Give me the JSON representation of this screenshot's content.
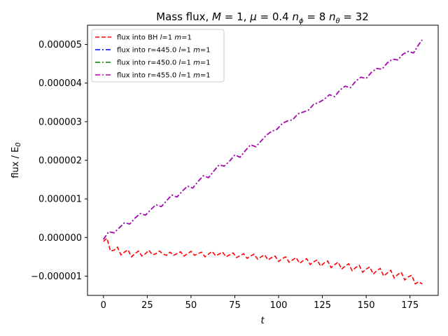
{
  "chart_data": {
    "type": "line",
    "title": "Mass flux, M = 1, μ = 0.4 nϕ = 8 nθ = 32",
    "title_parts": {
      "prefix": "Mass flux, ",
      "m": "M",
      "m_val": " = 1, ",
      "mu": "μ",
      "mu_val": " = 0.4 ",
      "nphi": "n",
      "nphi_sub": "ϕ",
      "nphi_val": " = 8 ",
      "ntheta": "n",
      "ntheta_sub": "θ",
      "ntheta_val": " = 32"
    },
    "xlabel": "t",
    "ylabel": "flux / E",
    "ylabel_sub": "0",
    "xlim": [
      -9.1,
      191.1
    ],
    "ylim": [
      -1.5e-06,
      5.5e-06
    ],
    "x_ticks": [
      0,
      25,
      50,
      75,
      100,
      125,
      150,
      175
    ],
    "x_tick_labels": [
      "0",
      "25",
      "50",
      "75",
      "100",
      "125",
      "150",
      "175"
    ],
    "y_ticks": [
      -1e-06,
      0,
      1e-06,
      2e-06,
      3e-06,
      4e-06,
      5e-06
    ],
    "y_tick_labels": [
      "−0.000001",
      "0.000000",
      "0.000001",
      "0.000002",
      "0.000003",
      "0.000004",
      "0.000005"
    ],
    "grid": false,
    "legend_position": "upper-left",
    "series": [
      {
        "name": "flux into BH l=1 m=1",
        "legend_parts": [
          "flux into BH ",
          "l",
          "=1 ",
          "m",
          "=1"
        ],
        "color": "#ff0000",
        "style": "dashed",
        "x": [
          0,
          2,
          4,
          6,
          8,
          10,
          12,
          14,
          16,
          18,
          20,
          22,
          24,
          26,
          28,
          30,
          32,
          34,
          36,
          38,
          40,
          42,
          44,
          46,
          48,
          50,
          52,
          54,
          56,
          58,
          60,
          62,
          64,
          66,
          68,
          70,
          72,
          74,
          76,
          78,
          80,
          82,
          84,
          86,
          88,
          90,
          92,
          94,
          96,
          98,
          100,
          102,
          104,
          106,
          108,
          110,
          112,
          114,
          116,
          118,
          120,
          122,
          124,
          126,
          128,
          130,
          132,
          134,
          136,
          138,
          140,
          142,
          144,
          146,
          148,
          150,
          152,
          154,
          156,
          158,
          160,
          162,
          164,
          166,
          168,
          170,
          172,
          174,
          176,
          178,
          180,
          182
        ],
        "y": [
          -1e-07,
          -2e-08,
          -3.5e-07,
          -3.3e-07,
          -2.5e-07,
          -4.5e-07,
          -3.8e-07,
          -3.2e-07,
          -5e-07,
          -4.2e-07,
          -3.5e-07,
          -4.8e-07,
          -4.2e-07,
          -3.3e-07,
          -4.5e-07,
          -4.2e-07,
          -3.5e-07,
          -4.3e-07,
          -4.6e-07,
          -3.8e-07,
          -4.6e-07,
          -4.2e-07,
          -3.7e-07,
          -4.8e-07,
          -4.2e-07,
          -3.6e-07,
          -4.6e-07,
          -4.2e-07,
          -3.8e-07,
          -5e-07,
          -4.3e-07,
          -3.6e-07,
          -4.7e-07,
          -4.3e-07,
          -3.8e-07,
          -5e-07,
          -4.5e-07,
          -4e-07,
          -5.2e-07,
          -4.7e-07,
          -4.2e-07,
          -5.4e-07,
          -4.8e-07,
          -4.3e-07,
          -5.6e-07,
          -5e-07,
          -4.5e-07,
          -5.8e-07,
          -5.2e-07,
          -4.8e-07,
          -6.2e-07,
          -5.5e-07,
          -5e-07,
          -6.4e-07,
          -5.8e-07,
          -5.2e-07,
          -6.7e-07,
          -6e-07,
          -5.5e-07,
          -7e-07,
          -6.3e-07,
          -5.8e-07,
          -7.4e-07,
          -6.6e-07,
          -6.1e-07,
          -7.8e-07,
          -7e-07,
          -6.4e-07,
          -8.2e-07,
          -7.4e-07,
          -6.8e-07,
          -8.6e-07,
          -7.8e-07,
          -7.2e-07,
          -9e-07,
          -8.2e-07,
          -7.6e-07,
          -9.5e-07,
          -8.6e-07,
          -8e-07,
          -1e-06,
          -9.2e-07,
          -8.5e-07,
          -1.05e-06,
          -9.6e-07,
          -9e-07,
          -1.1e-06,
          -1.02e-06,
          -9.8e-07,
          -1.2e-06,
          -1.15e-06,
          -1.2e-06
        ]
      },
      {
        "name": "flux into r=445.0 l=1 m=1",
        "legend_parts": [
          "flux into r=445.0 ",
          "l",
          "=1 ",
          "m",
          "=1"
        ],
        "color": "#0000ff",
        "style": "dashdot",
        "x": [
          0,
          3,
          6,
          9,
          12,
          15,
          18,
          21,
          24,
          27,
          30,
          33,
          36,
          39,
          42,
          45,
          48,
          51,
          54,
          57,
          60,
          63,
          66,
          69,
          72,
          75,
          78,
          81,
          84,
          87,
          90,
          93,
          96,
          99,
          102,
          105,
          108,
          111,
          114,
          117,
          120,
          123,
          126,
          129,
          132,
          135,
          138,
          141,
          144,
          147,
          150,
          153,
          156,
          159,
          162,
          165,
          168,
          171,
          174,
          177,
          180,
          182
        ],
        "y": [
          -5e-08,
          1.5e-07,
          1.2e-07,
          2.5e-07,
          3.8e-07,
          3.5e-07,
          5e-07,
          6.2e-07,
          5.8e-07,
          7.2e-07,
          8.5e-07,
          8e-07,
          9.5e-07,
          1.1e-06,
          1.05e-06,
          1.2e-06,
          1.33e-06,
          1.28e-06,
          1.45e-06,
          1.6e-06,
          1.55e-06,
          1.72e-06,
          1.88e-06,
          1.85e-06,
          1.98e-06,
          2.14e-06,
          2.08e-06,
          2.25e-06,
          2.4e-06,
          2.35e-06,
          2.5e-06,
          2.65e-06,
          2.75e-06,
          2.8e-06,
          2.95e-06,
          3.02e-06,
          3.05e-06,
          3.2e-06,
          3.25e-06,
          3.3e-06,
          3.45e-06,
          3.5e-06,
          3.58e-06,
          3.7e-06,
          3.65e-06,
          3.82e-06,
          3.92e-06,
          3.88e-06,
          4.05e-06,
          4.15e-06,
          4.12e-06,
          4.28e-06,
          4.38e-06,
          4.36e-06,
          4.52e-06,
          4.62e-06,
          4.6e-06,
          4.75e-06,
          4.82e-06,
          4.78e-06,
          5e-06,
          5.12e-06
        ]
      },
      {
        "name": "flux into r=450.0 l=1 m=1",
        "legend_parts": [
          "flux into r=450.0 ",
          "l",
          "=1 ",
          "m",
          "=1"
        ],
        "color": "#008000",
        "style": "dashdot",
        "x": [
          0,
          3,
          6,
          9,
          12,
          15,
          18,
          21,
          24,
          27,
          30,
          33,
          36,
          39,
          42,
          45,
          48,
          51,
          54,
          57,
          60,
          63,
          66,
          69,
          72,
          75,
          78,
          81,
          84,
          87,
          90,
          93,
          96,
          99,
          102,
          105,
          108,
          111,
          114,
          117,
          120,
          123,
          126,
          129,
          132,
          135,
          138,
          141,
          144,
          147,
          150,
          153,
          156,
          159,
          162,
          165,
          168,
          171,
          174,
          177,
          180,
          182
        ],
        "y": [
          -5e-08,
          1.5e-07,
          1.2e-07,
          2.5e-07,
          3.8e-07,
          3.5e-07,
          5e-07,
          6.2e-07,
          5.8e-07,
          7.2e-07,
          8.5e-07,
          8e-07,
          9.5e-07,
          1.1e-06,
          1.05e-06,
          1.2e-06,
          1.33e-06,
          1.28e-06,
          1.45e-06,
          1.6e-06,
          1.55e-06,
          1.72e-06,
          1.88e-06,
          1.85e-06,
          1.98e-06,
          2.14e-06,
          2.08e-06,
          2.25e-06,
          2.4e-06,
          2.35e-06,
          2.5e-06,
          2.65e-06,
          2.75e-06,
          2.8e-06,
          2.95e-06,
          3.02e-06,
          3.05e-06,
          3.2e-06,
          3.25e-06,
          3.3e-06,
          3.45e-06,
          3.5e-06,
          3.58e-06,
          3.7e-06,
          3.65e-06,
          3.82e-06,
          3.92e-06,
          3.88e-06,
          4.05e-06,
          4.15e-06,
          4.12e-06,
          4.28e-06,
          4.38e-06,
          4.36e-06,
          4.52e-06,
          4.62e-06,
          4.6e-06,
          4.75e-06,
          4.82e-06,
          4.78e-06,
          5e-06,
          5.12e-06
        ]
      },
      {
        "name": "flux into r=455.0 l=1 m=1",
        "legend_parts": [
          "flux into r=455.0 ",
          "l",
          "=1 ",
          "m",
          "=1"
        ],
        "color": "#bf00bf",
        "style": "dashdot",
        "x": [
          0,
          3,
          6,
          9,
          12,
          15,
          18,
          21,
          24,
          27,
          30,
          33,
          36,
          39,
          42,
          45,
          48,
          51,
          54,
          57,
          60,
          63,
          66,
          69,
          72,
          75,
          78,
          81,
          84,
          87,
          90,
          93,
          96,
          99,
          102,
          105,
          108,
          111,
          114,
          117,
          120,
          123,
          126,
          129,
          132,
          135,
          138,
          141,
          144,
          147,
          150,
          153,
          156,
          159,
          162,
          165,
          168,
          171,
          174,
          177,
          180,
          182
        ],
        "y": [
          -5e-08,
          1.5e-07,
          1.2e-07,
          2.5e-07,
          3.8e-07,
          3.5e-07,
          5e-07,
          6.2e-07,
          5.8e-07,
          7.2e-07,
          8.5e-07,
          8e-07,
          9.5e-07,
          1.1e-06,
          1.05e-06,
          1.2e-06,
          1.33e-06,
          1.28e-06,
          1.45e-06,
          1.6e-06,
          1.55e-06,
          1.72e-06,
          1.88e-06,
          1.85e-06,
          1.98e-06,
          2.14e-06,
          2.08e-06,
          2.25e-06,
          2.4e-06,
          2.35e-06,
          2.5e-06,
          2.65e-06,
          2.75e-06,
          2.8e-06,
          2.95e-06,
          3.02e-06,
          3.05e-06,
          3.2e-06,
          3.25e-06,
          3.3e-06,
          3.45e-06,
          3.5e-06,
          3.58e-06,
          3.7e-06,
          3.65e-06,
          3.82e-06,
          3.92e-06,
          3.88e-06,
          4.05e-06,
          4.15e-06,
          4.12e-06,
          4.28e-06,
          4.38e-06,
          4.36e-06,
          4.52e-06,
          4.62e-06,
          4.6e-06,
          4.75e-06,
          4.82e-06,
          4.78e-06,
          5e-06,
          5.12e-06
        ]
      }
    ]
  }
}
